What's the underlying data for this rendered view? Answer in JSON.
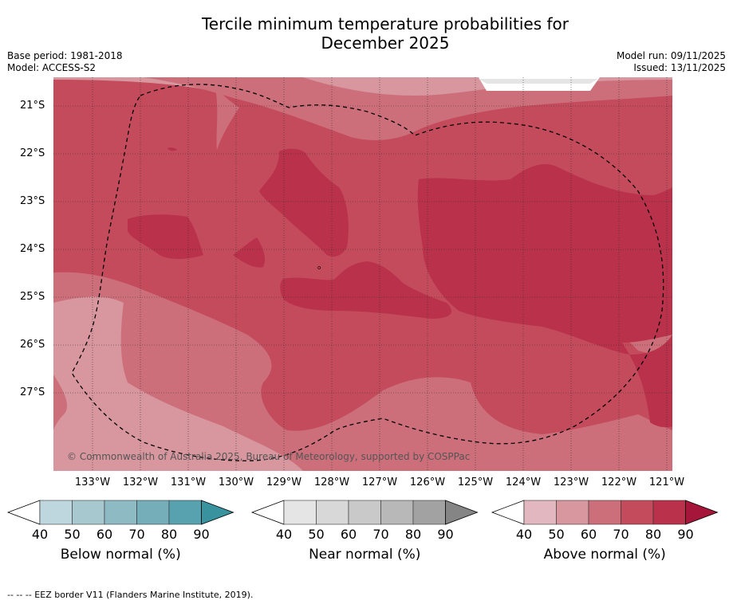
{
  "title": {
    "line1": "Tercile minimum temperature probabilities for",
    "line2": "December 2025"
  },
  "meta": {
    "base_period": "Base period: 1981-2018",
    "model": "Model: ACCESS-S2",
    "model_run": "Model run: 09/11/2025",
    "issued": "Issued: 13/11/2025"
  },
  "map": {
    "lat_labels": [
      "21°S",
      "22°S",
      "23°S",
      "24°S",
      "25°S",
      "26°S",
      "27°S"
    ],
    "lon_labels": [
      "133°W",
      "132°W",
      "131°W",
      "130°W",
      "129°W",
      "128°W",
      "127°W",
      "126°W",
      "125°W",
      "124°W",
      "123°W",
      "122°W",
      "121°W"
    ],
    "copyright": "© Commonwealth of Australia 2025, Bureau of Meteorology, supported by COSPPac"
  },
  "colorbars": [
    {
      "label": "Below normal (%)",
      "ticks": [
        "40",
        "50",
        "60",
        "70",
        "80",
        "90"
      ],
      "colors": [
        "#bed6dd",
        "#a7c8cf",
        "#8ebac4",
        "#75adb9",
        "#58a2b0",
        "#38939f"
      ]
    },
    {
      "label": "Near normal (%)",
      "ticks": [
        "40",
        "50",
        "60",
        "70",
        "80",
        "90"
      ],
      "colors": [
        "#e5e5e5",
        "#d8d8d8",
        "#c9c9c9",
        "#b8b8b8",
        "#a2a2a2",
        "#858585"
      ]
    },
    {
      "label": "Above normal (%)",
      "ticks": [
        "40",
        "50",
        "60",
        "70",
        "80",
        "90"
      ],
      "colors": [
        "#e2b7bf",
        "#d8969f",
        "#cc6f7b",
        "#c44b5b",
        "#b9314a",
        "#a6163a"
      ]
    }
  ],
  "footnote": "-- -- -- EEZ border V11 (Flanders Marine Institute, 2019)."
}
